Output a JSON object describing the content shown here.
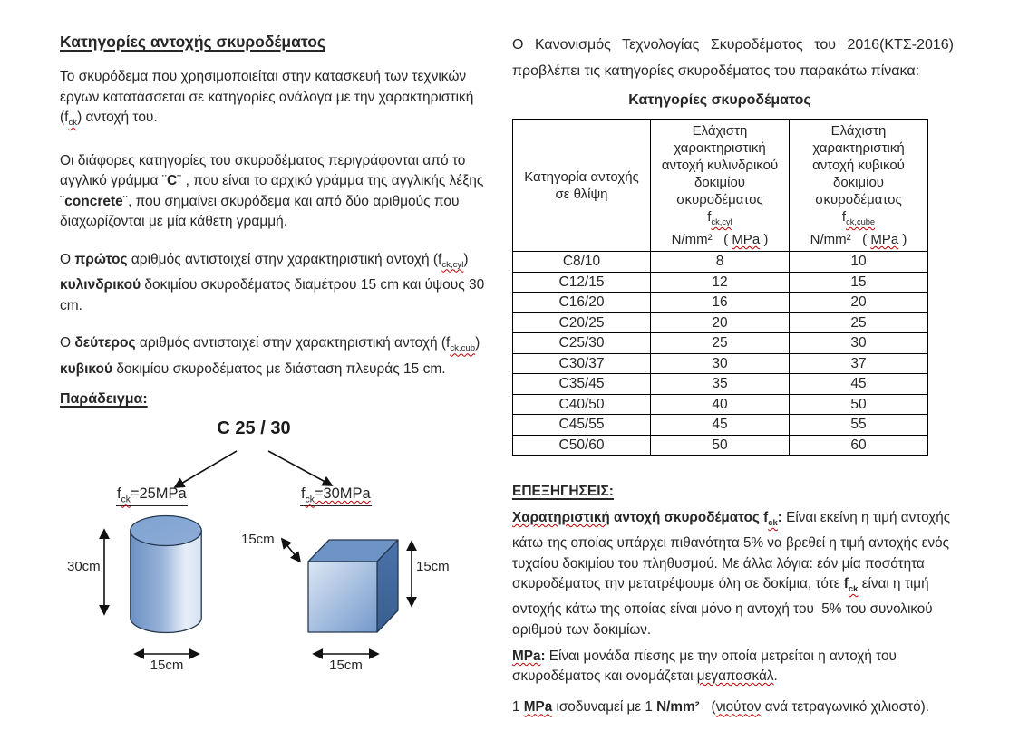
{
  "colors": {
    "text": "#262626",
    "table_border": "#000000",
    "spellcheck_wavy": "#c00000",
    "shape_outline": "#25384f",
    "cylinder_dark": "#6a90c2",
    "cylinder_light": "#e8eef8",
    "cylinder_top": "#7da2d0",
    "cube_top": "#6e94c6",
    "cube_side": "#42689f",
    "cube_front_light": "#dce7f4",
    "cube_front_mid": "#7399cc"
  },
  "left": {
    "title": "Κατηγορίες αντοχής σκυροδέματος",
    "p1": [
      {
        "t": "Το σκυρόδεμα που χρησιμοποιείται στην κατασκευή των τεχνικών έργων κατατάσσεται σε κατηγορίες ανάλογα με την χαρακτηριστική  (f"
      },
      {
        "t": "ck",
        "sub": true,
        "w": true
      },
      {
        "t": ") αντοχή του."
      }
    ],
    "p2": [
      {
        "t": "Οι διάφορες κατηγορίες του σκυροδέματος περιγράφονται από το αγγλικό γράμμα  ¨"
      },
      {
        "t": "C",
        "b": true
      },
      {
        "t": "¨ , που είναι το αρχικό γράμμα της αγγλικής λέξης ¨"
      },
      {
        "t": "concrete",
        "b": true
      },
      {
        "t": "¨, που σημαίνει σκυρόδεμα και από δύο αριθμούς που  διαχωρίζονται με μία κάθετη γραμμή."
      }
    ],
    "p3": [
      {
        "t": "Ο "
      },
      {
        "t": "πρώτος",
        "b": true
      },
      {
        "t": " αριθμός αντιστοιχεί στην χαρακτηριστική αντοχή (f"
      },
      {
        "t": "ck,cyl",
        "sub": true,
        "w": true
      },
      {
        "t": ") "
      },
      {
        "t": "κυλινδρικού",
        "b": true
      },
      {
        "t": " δοκιμίου σκυροδέματος διαμέτρου 15 cm και ύψους 30 cm."
      }
    ],
    "p4": [
      {
        "t": "Ο "
      },
      {
        "t": "δεύτερος",
        "b": true
      },
      {
        "t": " αριθμός αντιστοιχεί στην χαρακτηριστική αντοχή (f"
      },
      {
        "t": "ck,cub",
        "sub": true,
        "w": true
      },
      {
        "t": ") "
      },
      {
        "t": "κυβικού",
        "b": true
      },
      {
        "t": " δοκιμίου σκυροδέματος με διάσταση πλευράς 15 cm."
      }
    ],
    "example_heading": "Παράδειγμα:"
  },
  "diagram": {
    "class_label": "C 25 / 30",
    "cyl_strength": [
      {
        "t": "f"
      },
      {
        "t": "ck",
        "sub": true,
        "w": true
      },
      {
        "t": "=25MPa"
      }
    ],
    "cube_strength": [
      {
        "t": "f"
      },
      {
        "t": "ck",
        "sub": true,
        "w": true
      },
      {
        "t": "=30MPa",
        "w": true
      }
    ],
    "dims": {
      "cyl_height": "30cm",
      "cyl_width": "15cm",
      "cube_depth": "15cm",
      "cube_height": "15cm",
      "cube_width": "15cm"
    }
  },
  "right": {
    "intro": "Ο Κανονισμός Τεχνολογίας Σκυροδέματος του 2016(ΚΤΣ-2016) προβλέπει τις κατηγορίες σκυροδέματος του παρακάτω πίνακα:",
    "notes_heading": "ΕΠΕΞΗΓΗΣΕΙΣ:",
    "note1": [
      {
        "t": "Χαρατηριστική",
        "b": true,
        "w": true
      },
      {
        "t": " αντοχή σκυροδέματος ",
        "b": true
      },
      {
        "t": "f",
        "b": true
      },
      {
        "t": "ck",
        "b": true,
        "sub": true,
        "w": true
      },
      {
        "t": ":",
        "b": true
      },
      {
        "t": " Είναι εκείνη η τιμή αντοχής κάτω της οποίας υπάρχει πιθανότητα 5% να βρεθεί η τιμή αντοχής ενός τυχαίου δοκιμίου του πληθυσμού.  Με άλλα λόγια: εάν μία ποσότητα σκυροδέματος την μετατρέψουμε όλη σε δοκίμια, τότε "
      },
      {
        "t": "f",
        "b": true
      },
      {
        "t": "ck",
        "b": true,
        "sub": true,
        "w": true
      },
      {
        "t": " είναι η τιμή αντοχής κάτω της οποίας είναι μόνο η αντοχή του  5% του συνολικού αριθμού των δοκιμίων."
      }
    ],
    "note2": [
      {
        "t": "MPa",
        "b": true,
        "w": true
      },
      {
        "t": ":",
        "b": true
      },
      {
        "t": " Είναι μονάδα πίεσης με την οποία μετρείται η αντοχή του σκυροδέματος και ονομάζεται "
      },
      {
        "t": "μεγαπασκάλ",
        "w": true
      },
      {
        "t": "."
      }
    ],
    "note3": [
      {
        "t": "1 "
      },
      {
        "t": "MPa",
        "b": true,
        "w": true
      },
      {
        "t": " ισοδυναμεί με 1 "
      },
      {
        "t": "N/mm²",
        "b": true
      },
      {
        "t": "   ("
      },
      {
        "t": "νιούτον",
        "w": true
      },
      {
        "t": " ανά τετραγωνικό χιλιοστό)."
      }
    ]
  },
  "table": {
    "title": "Κατηγορίες σκυροδέματος",
    "col1_header": "Κατηγορία αντοχής σε θλίψη",
    "col2_lines": [
      "Ελάχιστη",
      "χαρακτηριστική",
      "αντοχή κυλινδρικού",
      "δοκιμίου",
      "σκυροδέματος"
    ],
    "col2_f": [
      {
        "t": "f"
      },
      {
        "t": "ck,cyl",
        "sub": true,
        "w": true
      }
    ],
    "col2_unit": [
      {
        "t": "N/mm²   ( "
      },
      {
        "t": "MPa",
        "w": true
      },
      {
        "t": " )"
      }
    ],
    "col3_lines": [
      "Ελάχιστη",
      "χαρακτηριστική",
      "αντοχή κυβικού",
      "δοκιμίου",
      "σκυροδέματος"
    ],
    "col3_f": [
      {
        "t": "f"
      },
      {
        "t": "ck,cube",
        "sub": true,
        "w": true
      }
    ],
    "col3_unit": [
      {
        "t": "N/mm²   ( "
      },
      {
        "t": "MPa",
        "w": true
      },
      {
        "t": " )"
      }
    ],
    "rows": [
      [
        "C8/10",
        "8",
        "10"
      ],
      [
        "C12/15",
        "12",
        "15"
      ],
      [
        "C16/20",
        "16",
        "20"
      ],
      [
        "C20/25",
        "20",
        "25"
      ],
      [
        "C25/30",
        "25",
        "30"
      ],
      [
        "C30/37",
        "30",
        "37"
      ],
      [
        "C35/45",
        "35",
        "45"
      ],
      [
        "C40/50",
        "40",
        "50"
      ],
      [
        "C45/55",
        "45",
        "55"
      ],
      [
        "C50/60",
        "50",
        "60"
      ]
    ]
  }
}
